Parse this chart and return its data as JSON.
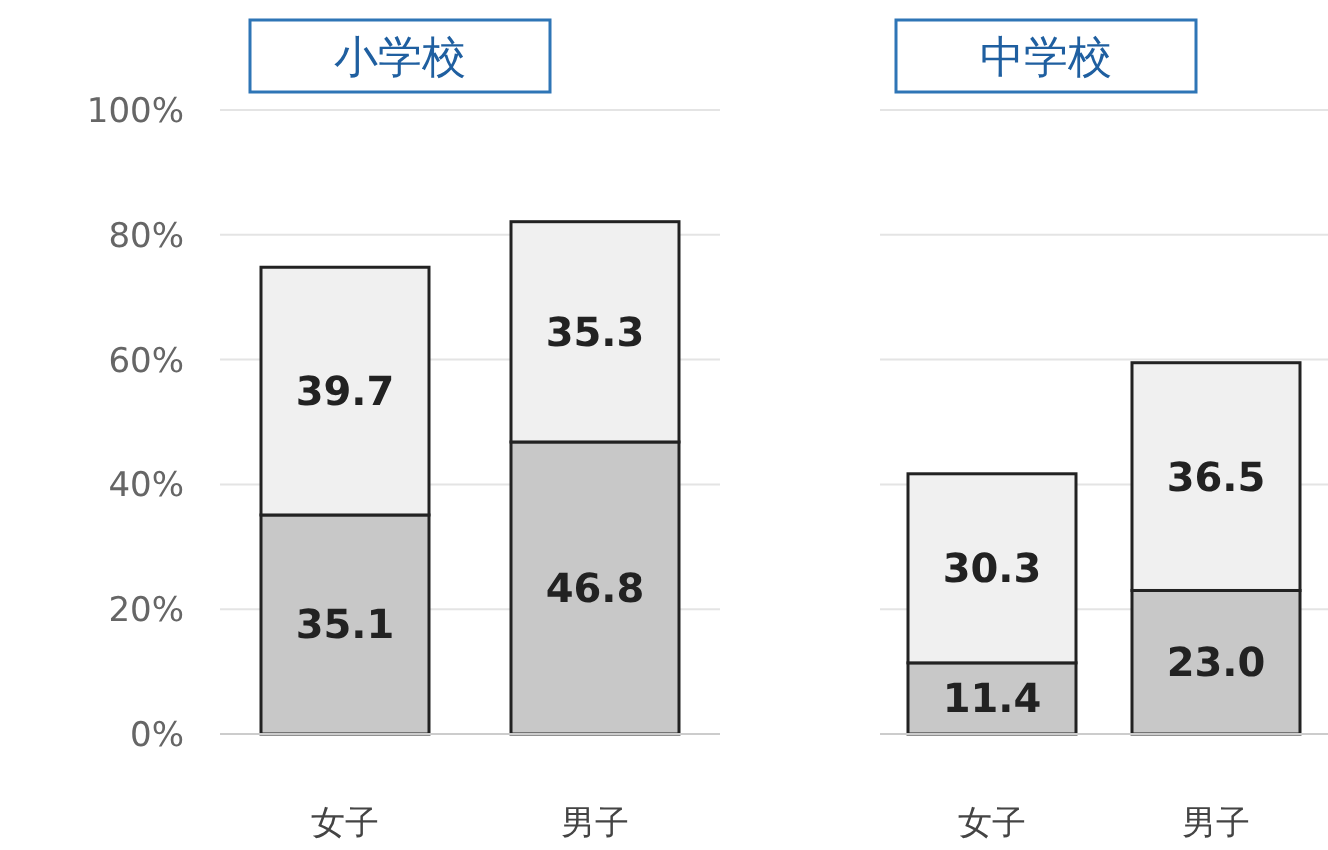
{
  "chart_data": [
    {
      "type": "bar",
      "title": "小学校",
      "stacked": true,
      "categories": [
        "女子",
        "男子"
      ],
      "ylim": [
        0,
        100
      ],
      "yticks": [
        {
          "value": 0,
          "label": "0%"
        },
        {
          "value": 20,
          "label": "20%"
        },
        {
          "value": 40,
          "label": "40%"
        },
        {
          "value": 60,
          "label": "60%"
        },
        {
          "value": 80,
          "label": "80%"
        },
        {
          "value": 100,
          "label": "100%"
        }
      ],
      "grid": "y",
      "data_labels": true,
      "series": [
        {
          "color": "#c8c8c8",
          "values": [
            35.1,
            46.8
          ]
        },
        {
          "color": "#f0f0f0",
          "values": [
            39.7,
            35.3
          ]
        }
      ]
    },
    {
      "type": "bar",
      "title": "中学校",
      "stacked": true,
      "categories": [
        "女子",
        "男子"
      ],
      "ylim": [
        0,
        100
      ],
      "yticks": [
        0,
        20,
        40,
        60,
        80,
        100
      ],
      "tick_labels": "x",
      "grid": "y",
      "series": [
        {
          "color": "#c8c8c8",
          "values": [
            11.4,
            23.0
          ],
          "value_labels": [
            "11.4",
            "23.0"
          ]
        },
        {
          "color": "#f0f0f0",
          "values": [
            30.3,
            36.5
          ],
          "value_labels": [
            "30.3",
            "36.5"
          ]
        }
      ]
    }
  ]
}
